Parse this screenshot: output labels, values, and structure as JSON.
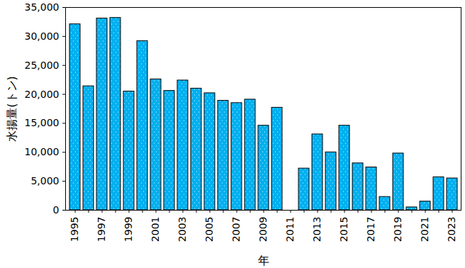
{
  "chart_data": {
    "type": "bar",
    "x_label": "年",
    "y_label": "水揚量(トン)",
    "categories": [
      "1995",
      null,
      "1997",
      null,
      "1999",
      null,
      "2001",
      null,
      "2003",
      null,
      "2005",
      null,
      "2007",
      null,
      "2009",
      null,
      "2011",
      null,
      "2013",
      null,
      "2015",
      null,
      "2017",
      null,
      "2019",
      null,
      "2021",
      null,
      "2023"
    ],
    "values": [
      32100,
      21400,
      33100,
      33200,
      20500,
      29200,
      22600,
      20600,
      22400,
      21000,
      20200,
      18900,
      18500,
      19100,
      14600,
      17700,
      0,
      7200,
      13100,
      10000,
      14600,
      8100,
      7400,
      2300,
      9800,
      500,
      1500,
      5700,
      5500
    ],
    "color": "#00b0f0",
    "ylim": [
      0,
      35000
    ],
    "yticks": [
      0,
      {
        "value": 5000,
        "label": "5,000"
      },
      {
        "value": 10000,
        "label": "10,000"
      },
      {
        "value": 15000,
        "label": "15,000"
      },
      {
        "value": 20000,
        "label": "20,000"
      },
      {
        "value": 25000,
        "label": "25,000"
      },
      {
        "value": 30000,
        "label": "30,000"
      },
      {
        "value": 35000,
        "label": "35,000"
      }
    ],
    "grid": false
  }
}
